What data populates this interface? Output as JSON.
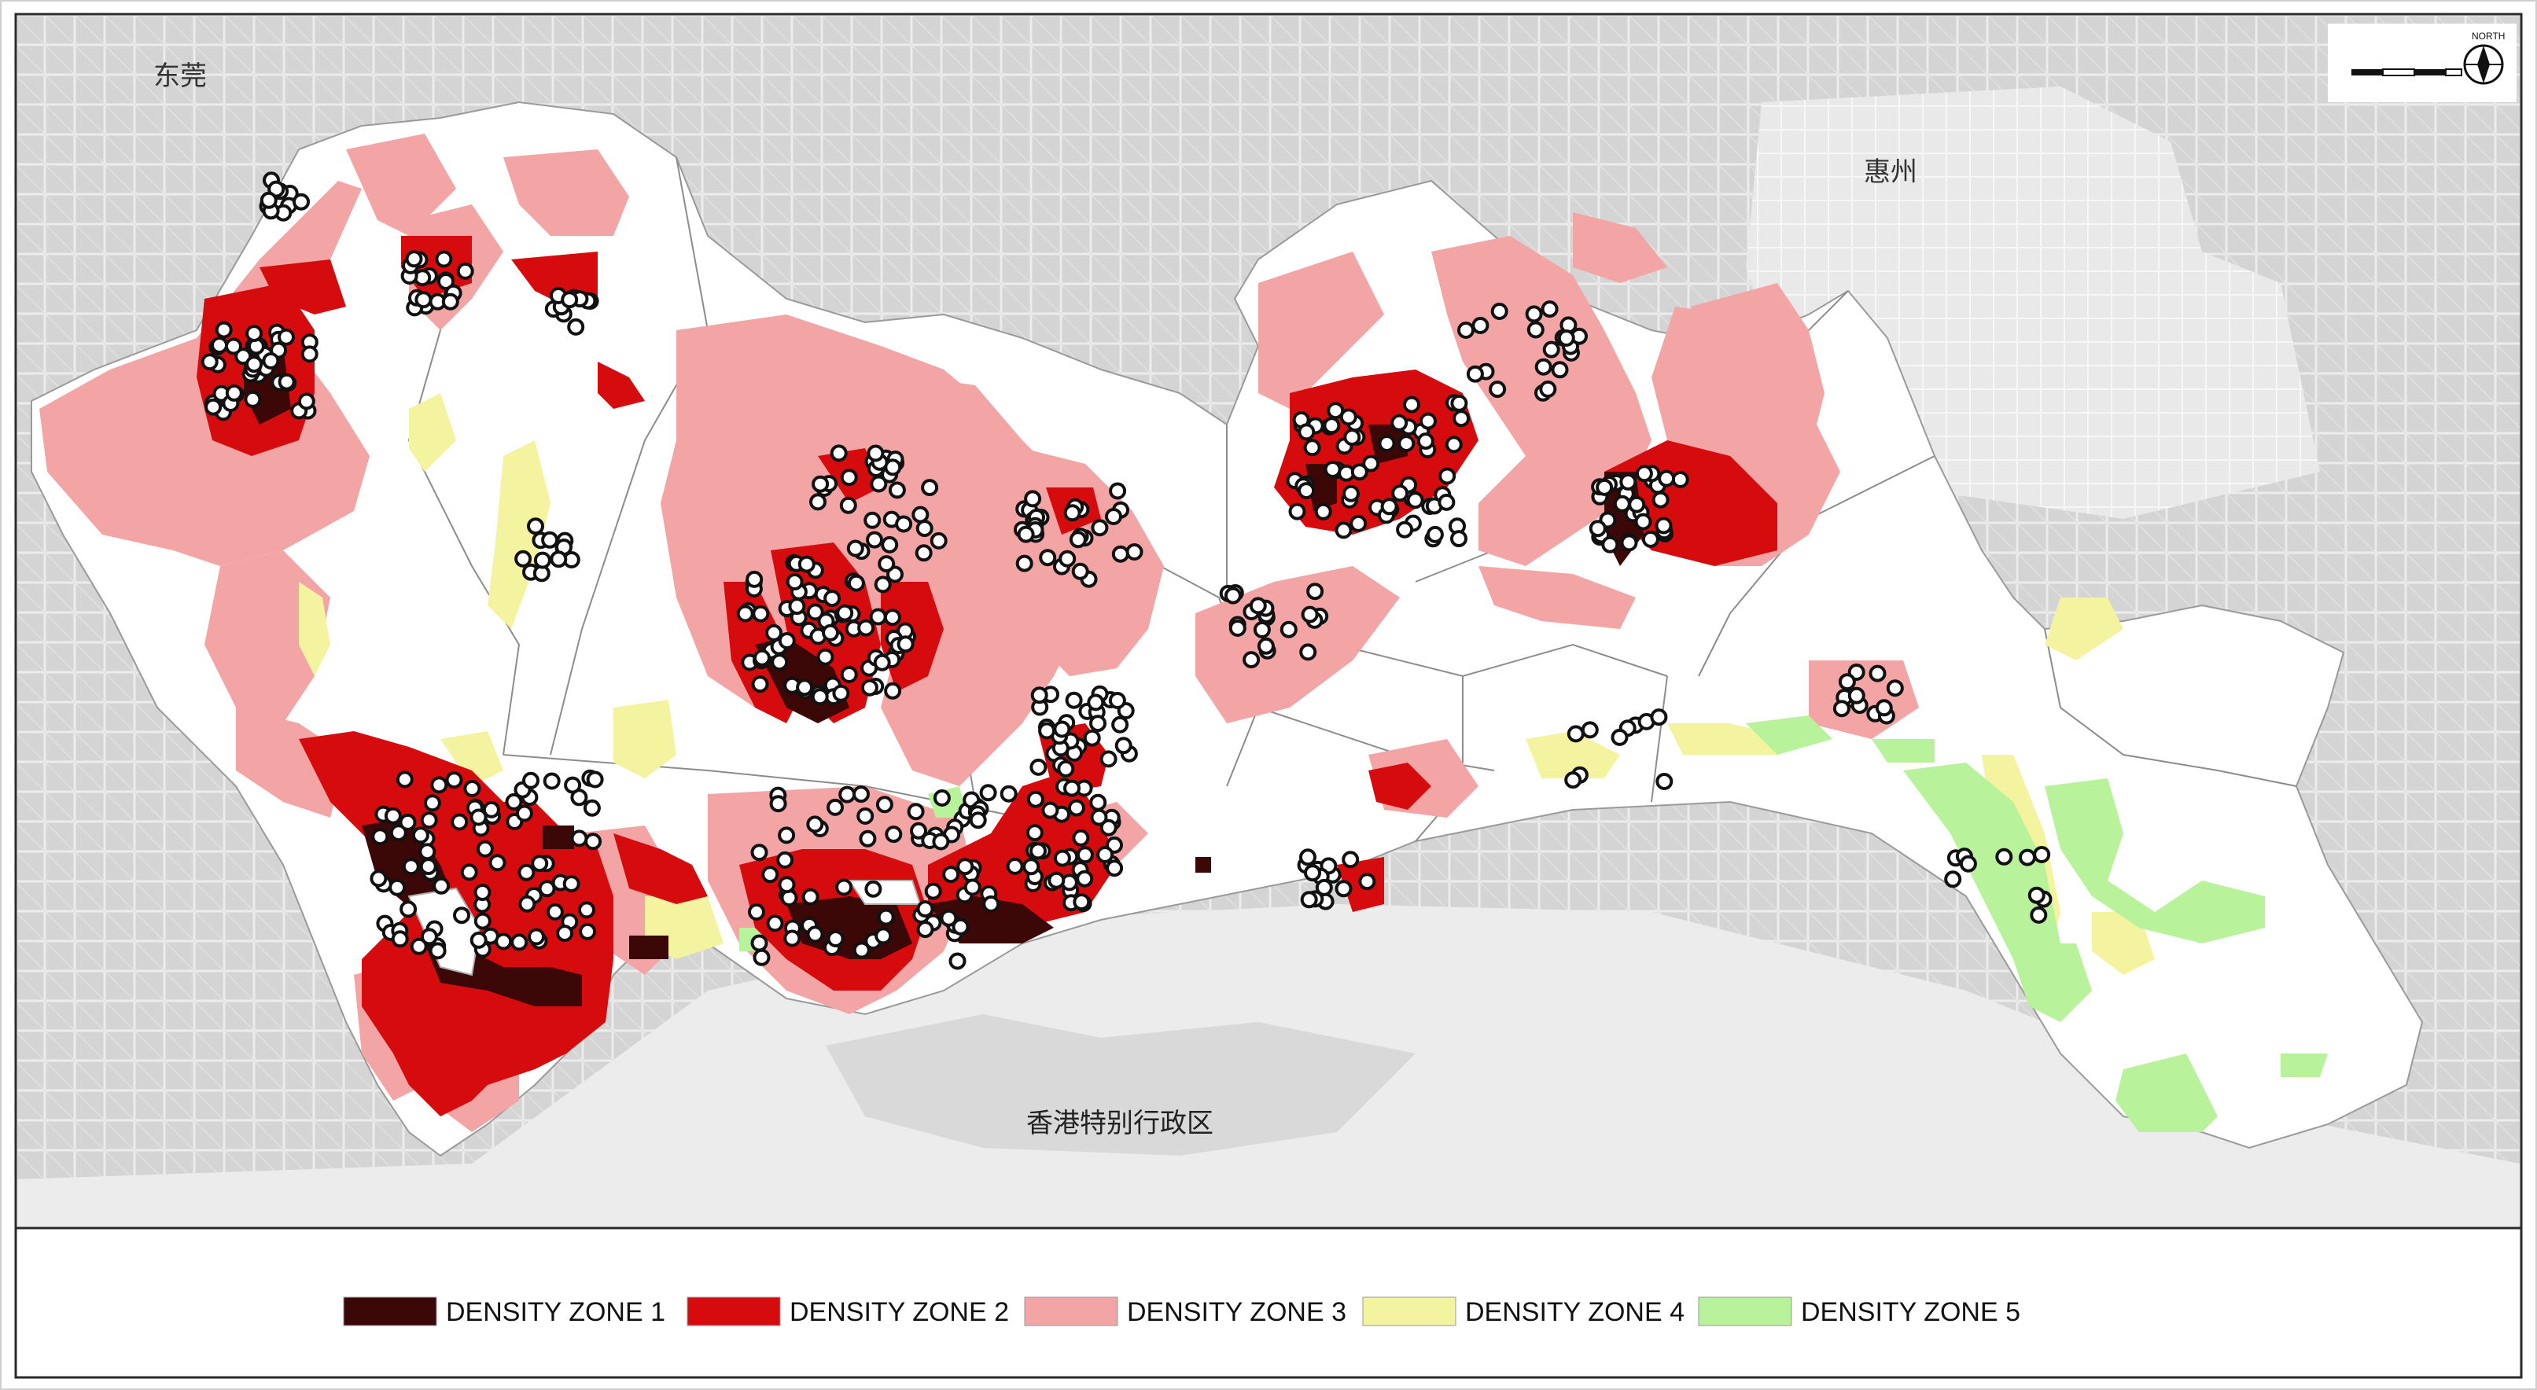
{
  "map": {
    "place_labels": {
      "dongguan": "东莞",
      "huizhou": "惠州",
      "hongkong": "香港特别行政区"
    },
    "north_label": "NORTH",
    "north_icon": "compass-rose-icon",
    "scale_icon": "scale-bar-icon"
  },
  "legend": {
    "items": [
      {
        "label": "DENSITY ZONE 1",
        "color": "#3b0707"
      },
      {
        "label": "DENSITY ZONE 2",
        "color": "#d60b0e"
      },
      {
        "label": "DENSITY ZONE 3",
        "color": "#f3a4a4"
      },
      {
        "label": "DENSITY ZONE 4",
        "color": "#f4f3a0"
      },
      {
        "label": "DENSITY ZONE 5",
        "color": "#b8f29a"
      }
    ]
  },
  "colors": {
    "basemap": "#d6d6d6",
    "city_area": "#ffffff",
    "marker_fill": "#ffffff",
    "marker_stroke": "#111111"
  }
}
